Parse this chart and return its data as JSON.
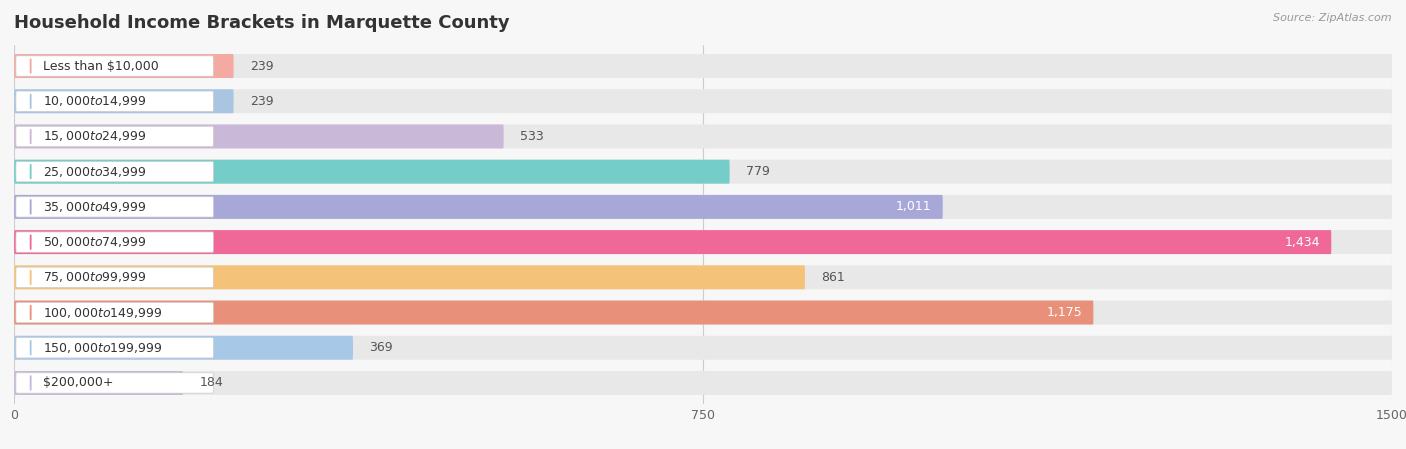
{
  "title": "Household Income Brackets in Marquette County",
  "source": "Source: ZipAtlas.com",
  "categories": [
    "Less than $10,000",
    "$10,000 to $14,999",
    "$15,000 to $24,999",
    "$25,000 to $34,999",
    "$35,000 to $49,999",
    "$50,000 to $74,999",
    "$75,000 to $99,999",
    "$100,000 to $149,999",
    "$150,000 to $199,999",
    "$200,000+"
  ],
  "values": [
    239,
    239,
    533,
    779,
    1011,
    1434,
    861,
    1175,
    369,
    184
  ],
  "bar_colors": [
    "#f4a9a2",
    "#aac5e2",
    "#c9b8d8",
    "#74cdc8",
    "#a8a8d8",
    "#f06898",
    "#f5c27a",
    "#e8907a",
    "#a8c8e8",
    "#c8b8d8"
  ],
  "label_dot_colors": [
    "#f4a9a2",
    "#aac5e2",
    "#c9b8d8",
    "#74cdc8",
    "#a8a8d8",
    "#f06898",
    "#f5c27a",
    "#e8907a",
    "#a8c8e8",
    "#c8b8d8"
  ],
  "bg_bar_color": "#e8e8e8",
  "xlim": [
    0,
    1500
  ],
  "xticks": [
    0,
    750,
    1500
  ],
  "background_color": "#f7f7f7",
  "title_fontsize": 13,
  "label_fontsize": 9,
  "value_fontsize": 9,
  "white_label_threshold": 1000
}
